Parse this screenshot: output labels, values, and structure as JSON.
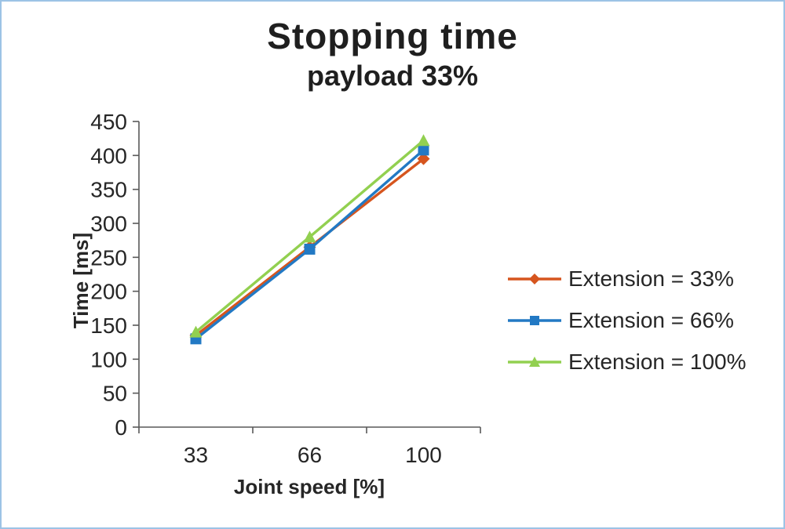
{
  "frame": {
    "border_color": "#9CC3E5"
  },
  "chart_data": {
    "type": "line",
    "title": "Stopping time",
    "subtitle": "payload 33%",
    "xlabel": "Joint speed [%]",
    "ylabel": "Time [ms]",
    "categories": [
      "33",
      "66",
      "100"
    ],
    "ylim": [
      0,
      450
    ],
    "yticks": [
      0,
      50,
      100,
      150,
      200,
      250,
      300,
      350,
      400,
      450
    ],
    "grid": false,
    "legend_position": "right",
    "axis_color": "#595959",
    "text_color": "#262626",
    "series": [
      {
        "name": "Extension = 33%",
        "marker": "diamond",
        "color": "#D6551E",
        "values": [
          135,
          265,
          395
        ]
      },
      {
        "name": "Extension = 66%",
        "marker": "square",
        "color": "#2279C4",
        "values": [
          130,
          262,
          408
        ]
      },
      {
        "name": "Extension = 100%",
        "marker": "triangle",
        "color": "#92D050",
        "values": [
          140,
          280,
          422
        ]
      }
    ]
  }
}
